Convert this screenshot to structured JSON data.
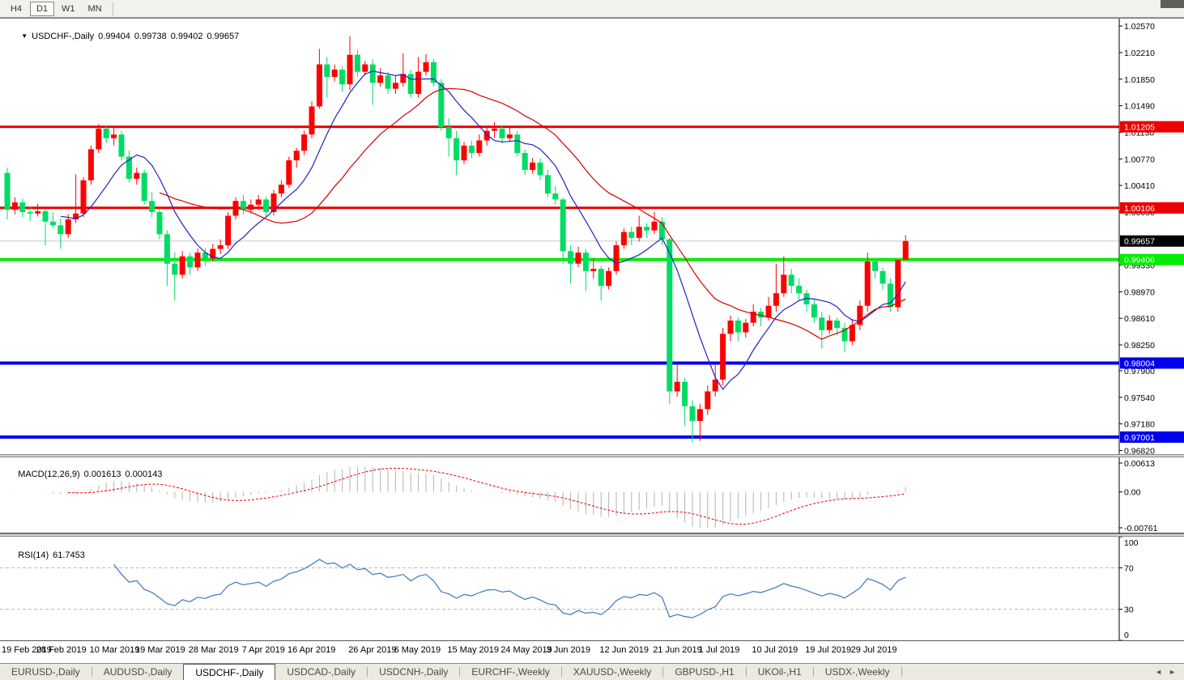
{
  "toolbar": {
    "timeframes": [
      "H4",
      "D1",
      "W1",
      "MN"
    ],
    "active_timeframe": "D1"
  },
  "header": {
    "dropdown_icon": "▼",
    "symbol": "USDCHF-,Daily",
    "open": "0.99404",
    "high": "0.99738",
    "low": "0.99402",
    "close": "0.99657"
  },
  "price_axis": {
    "ticks": [
      "1.02570",
      "1.02210",
      "1.01850",
      "1.01490",
      "1.01130",
      "1.00770",
      "1.00410",
      "1.00050",
      "0.99330",
      "0.98970",
      "0.98610",
      "0.98250",
      "0.97900",
      "0.97540",
      "0.97180",
      "0.96820"
    ]
  },
  "hlines": [
    {
      "price": 1.01205,
      "label": "1.01205",
      "color": "#EE0000",
      "width": 3
    },
    {
      "price": 1.00106,
      "label": "1.00106",
      "color": "#EE0000",
      "width": 3
    },
    {
      "price": 0.99406,
      "label": "0.99406",
      "color": "#00EE00",
      "width": 4
    },
    {
      "price": 0.98004,
      "label": "0.98004",
      "color": "#0000EE",
      "width": 4
    },
    {
      "price": 0.97001,
      "label": "0.97001",
      "color": "#0000EE",
      "width": 4
    }
  ],
  "current_price": {
    "value": 0.99657,
    "label": "0.99657",
    "badge_color": "#000000",
    "line_color": "#c8c8c8"
  },
  "chart_data": {
    "type": "candlestick",
    "symbol": "USDCHF",
    "timeframe": "Daily",
    "title": "USDCHF-,Daily",
    "ylim": [
      0.9677,
      1.0267
    ],
    "legend_position": "none",
    "grid": false,
    "x_labels": [
      [
        "19 Feb 2019",
        0
      ],
      [
        "28 Feb 2019",
        7
      ],
      [
        "10 Mar 2019",
        14
      ],
      [
        "19 Mar 2019",
        20
      ],
      [
        "28 Mar 2019",
        27
      ],
      [
        "7 Apr 2019",
        34
      ],
      [
        "16 Apr 2019",
        40
      ],
      [
        "26 Apr 2019",
        48
      ],
      [
        "6 May 2019",
        54
      ],
      [
        "15 May 2019",
        61
      ],
      [
        "24 May 2019",
        68
      ],
      [
        "3 Jun 2019",
        74
      ],
      [
        "12 Jun 2019",
        81
      ],
      [
        "21 Jun 2019",
        88
      ],
      [
        "1 Jul 2019",
        94
      ],
      [
        "10 Jul 2019",
        101
      ],
      [
        "19 Jul 2019",
        108
      ],
      [
        "29 Jul 2019",
        114
      ]
    ],
    "candles": [
      [
        1.0058,
        1.0065,
        0.9995,
        1.0008
      ],
      [
        1.0008,
        1.0025,
        1.0002,
        1.0018
      ],
      [
        1.0018,
        1.0023,
        0.9998,
        1.0005
      ],
      [
        1.0005,
        1.0012,
        0.9993,
        1.0003
      ],
      [
        1.0003,
        1.0016,
        0.9999,
        1.0006
      ],
      [
        1.0006,
        1.0009,
        0.996,
        0.9992
      ],
      [
        0.9992,
        1.0005,
        0.9983,
        0.9987
      ],
      [
        0.9987,
        0.9996,
        0.9955,
        0.9975
      ],
      [
        0.9975,
        1.0002,
        0.997,
        0.9995
      ],
      [
        0.9995,
        1.0056,
        0.999,
        1.0003
      ],
      [
        1.0003,
        1.0052,
        0.9998,
        1.0048
      ],
      [
        1.0048,
        1.0095,
        1.0042,
        1.009
      ],
      [
        1.009,
        1.0124,
        1.0085,
        1.0118
      ],
      [
        1.0118,
        1.0121,
        1.0098,
        1.0105
      ],
      [
        1.0105,
        1.0122,
        1.0095,
        1.011
      ],
      [
        1.011,
        1.0115,
        1.0075,
        1.008
      ],
      [
        1.008,
        1.0088,
        1.0045,
        1.005
      ],
      [
        1.005,
        1.0065,
        1.0042,
        1.0058
      ],
      [
        1.0058,
        1.0062,
        1.0015,
        1.002
      ],
      [
        1.002,
        1.0032,
        0.9998,
        1.0005
      ],
      [
        1.0005,
        1.001,
        0.9968,
        0.9975
      ],
      [
        0.9975,
        0.998,
        0.9905,
        0.9935
      ],
      [
        0.9935,
        0.995,
        0.9885,
        0.992
      ],
      [
        0.992,
        0.9952,
        0.9915,
        0.9945
      ],
      [
        0.9945,
        0.995,
        0.992,
        0.993
      ],
      [
        0.993,
        0.9956,
        0.9925,
        0.995
      ],
      [
        0.995,
        0.9956,
        0.9932,
        0.9942
      ],
      [
        0.9942,
        0.9962,
        0.9938,
        0.9955
      ],
      [
        0.9955,
        0.9968,
        0.9948,
        0.996
      ],
      [
        0.996,
        1.0005,
        0.9955,
        1.0
      ],
      [
        1.0,
        1.0025,
        0.9995,
        1.002
      ],
      [
        1.002,
        1.0028,
        1.0002,
        1.0008
      ],
      [
        1.0008,
        1.0022,
        1.0003,
        1.0015
      ],
      [
        1.0015,
        1.0028,
        1.0008,
        1.0022
      ],
      [
        1.0022,
        1.0026,
        0.9998,
        1.0005
      ],
      [
        1.0005,
        1.0035,
        1.0,
        1.003
      ],
      [
        1.003,
        1.0048,
        1.0025,
        1.0042
      ],
      [
        1.0042,
        1.008,
        1.0038,
        1.0075
      ],
      [
        1.0075,
        1.0092,
        1.0065,
        1.0088
      ],
      [
        1.0088,
        1.0115,
        1.0082,
        1.011
      ],
      [
        1.011,
        1.0155,
        1.0105,
        1.0148
      ],
      [
        1.0148,
        1.0226,
        1.0145,
        1.0205
      ],
      [
        1.0205,
        1.0215,
        1.016,
        1.0188
      ],
      [
        1.0188,
        1.0205,
        1.0182,
        1.0198
      ],
      [
        1.0198,
        1.0202,
        1.0168,
        1.0178
      ],
      [
        1.0178,
        1.0243,
        1.017,
        1.0218
      ],
      [
        1.0218,
        1.0225,
        1.0188,
        1.0195
      ],
      [
        1.0195,
        1.021,
        1.019,
        1.0205
      ],
      [
        1.0205,
        1.0212,
        1.015,
        1.018
      ],
      [
        1.018,
        1.02,
        1.0175,
        1.019
      ],
      [
        1.019,
        1.0195,
        1.0165,
        1.0172
      ],
      [
        1.0172,
        1.019,
        1.0165,
        1.018
      ],
      [
        1.018,
        1.022,
        1.0175,
        1.0192
      ],
      [
        1.0192,
        1.0198,
        1.016,
        1.0165
      ],
      [
        1.0165,
        1.0215,
        1.016,
        1.0195
      ],
      [
        1.0195,
        1.0219,
        1.019,
        1.0208
      ],
      [
        1.0208,
        1.0212,
        1.0175,
        1.018
      ],
      [
        1.018,
        1.0185,
        1.0115,
        1.012
      ],
      [
        1.012,
        1.0132,
        1.008,
        1.0105
      ],
      [
        1.0105,
        1.0115,
        1.0055,
        1.0075
      ],
      [
        1.0075,
        1.01,
        1.007,
        1.0095
      ],
      [
        1.0095,
        1.0102,
        1.0078,
        1.0085
      ],
      [
        1.0085,
        1.011,
        1.008,
        1.0102
      ],
      [
        1.0102,
        1.012,
        1.0095,
        1.0115
      ],
      [
        1.0115,
        1.0127,
        1.0105,
        1.0118
      ],
      [
        1.0118,
        1.0122,
        1.0098,
        1.0105
      ],
      [
        1.0105,
        1.0122,
        1.01,
        1.011
      ],
      [
        1.011,
        1.0115,
        1.008,
        1.0085
      ],
      [
        1.0085,
        1.009,
        1.0055,
        1.0062
      ],
      [
        1.0062,
        1.0078,
        1.0057,
        1.0072
      ],
      [
        1.0072,
        1.0078,
        1.0048,
        1.0055
      ],
      [
        1.0055,
        1.0062,
        1.0025,
        1.003
      ],
      [
        1.003,
        1.004,
        1.0015,
        1.0022
      ],
      [
        1.0022,
        1.0025,
        0.9935,
        0.9952
      ],
      [
        0.9952,
        0.996,
        0.9908,
        0.9935
      ],
      [
        0.9935,
        0.9958,
        0.993,
        0.995
      ],
      [
        0.995,
        0.9955,
        0.9898,
        0.9925
      ],
      [
        0.9925,
        0.9942,
        0.9915,
        0.9928
      ],
      [
        0.9928,
        0.9932,
        0.9885,
        0.9905
      ],
      [
        0.9905,
        0.993,
        0.99,
        0.9925
      ],
      [
        0.9925,
        0.9965,
        0.992,
        0.996
      ],
      [
        0.996,
        0.9983,
        0.9955,
        0.9978
      ],
      [
        0.9978,
        0.9985,
        0.996,
        0.997
      ],
      [
        0.997,
        1.0,
        0.9965,
        0.9985
      ],
      [
        0.9985,
        0.999,
        0.997,
        0.998
      ],
      [
        0.998,
        1.0005,
        0.9975,
        0.9992
      ],
      [
        0.9992,
        0.9998,
        0.996,
        0.9968
      ],
      [
        0.9968,
        0.997,
        0.9745,
        0.9762
      ],
      [
        0.9762,
        0.98,
        0.9755,
        0.9775
      ],
      [
        0.9775,
        0.978,
        0.9715,
        0.9742
      ],
      [
        0.9742,
        0.975,
        0.9693,
        0.9722
      ],
      [
        0.9722,
        0.9745,
        0.9695,
        0.9738
      ],
      [
        0.9738,
        0.977,
        0.973,
        0.9762
      ],
      [
        0.9762,
        0.98,
        0.9755,
        0.9778
      ],
      [
        0.9778,
        0.9848,
        0.977,
        0.984
      ],
      [
        0.984,
        0.9865,
        0.983,
        0.9858
      ],
      [
        0.9858,
        0.9862,
        0.983,
        0.9842
      ],
      [
        0.9842,
        0.986,
        0.9835,
        0.9855
      ],
      [
        0.9855,
        0.988,
        0.985,
        0.987
      ],
      [
        0.987,
        0.9875,
        0.985,
        0.9862
      ],
      [
        0.9862,
        0.989,
        0.9858,
        0.9878
      ],
      [
        0.9878,
        0.9935,
        0.987,
        0.9895
      ],
      [
        0.9895,
        0.9945,
        0.989,
        0.992
      ],
      [
        0.992,
        0.9928,
        0.9895,
        0.9905
      ],
      [
        0.9905,
        0.9915,
        0.9885,
        0.9895
      ],
      [
        0.9895,
        0.99,
        0.987,
        0.988
      ],
      [
        0.988,
        0.9888,
        0.9855,
        0.9862
      ],
      [
        0.9862,
        0.987,
        0.982,
        0.9845
      ],
      [
        0.9845,
        0.9865,
        0.984,
        0.9858
      ],
      [
        0.9858,
        0.9862,
        0.9838,
        0.9848
      ],
      [
        0.9848,
        0.9855,
        0.9815,
        0.983
      ],
      [
        0.983,
        0.986,
        0.9825,
        0.9852
      ],
      [
        0.9852,
        0.9885,
        0.9845,
        0.9878
      ],
      [
        0.9878,
        0.995,
        0.987,
        0.9938
      ],
      [
        0.9938,
        0.9942,
        0.9915,
        0.9925
      ],
      [
        0.9925,
        0.993,
        0.99,
        0.9908
      ],
      [
        0.9908,
        0.9915,
        0.987,
        0.9876
      ],
      [
        0.9876,
        0.994,
        0.987,
        0.994
      ],
      [
        0.99404,
        0.99738,
        0.99402,
        0.99657
      ]
    ],
    "moving_averages": [
      {
        "name": "fast-ma",
        "period": 8,
        "color": "#2222C8"
      },
      {
        "name": "slow-ma",
        "period": 21,
        "color": "#D40000"
      }
    ]
  },
  "macd": {
    "label": "MACD(12,26,9)",
    "value_main": "0.001613",
    "value_signal": "0.000143",
    "fast": 12,
    "slow": 26,
    "signal": 9,
    "axis_ticks": [
      "0.00613",
      "0.00",
      "-0.00761"
    ],
    "ylim": [
      -0.00761,
      0.00613
    ],
    "hist_color": "#b4b4b4",
    "signal_color": "#EE0000"
  },
  "rsi": {
    "label": "RSI(14)",
    "value": "61.7453",
    "period": 14,
    "levels": [
      70,
      30
    ],
    "axis_ticks": [
      "100",
      "70",
      "30",
      "0"
    ],
    "ylim": [
      0,
      100
    ],
    "line_color": "#3A78C2"
  },
  "tabs": {
    "items": [
      "EURUSD-,Daily",
      "AUDUSD-,Daily",
      "USDCHF-,Daily",
      "USDCAD-,Daily",
      "USDCNH-,Daily",
      "EURCHF-,Weekly",
      "XAUUSD-,Weekly",
      "GBPUSD-,H1",
      "UKOil-,H1",
      "USDX-,Weekly"
    ],
    "active_index": 2,
    "scroll_left_icon": "◄",
    "scroll_right_icon": "►"
  },
  "colors": {
    "bull": "#FF0000",
    "bear": "#00DC64",
    "background": "#FFFFFF",
    "axis_text": "#000000"
  }
}
